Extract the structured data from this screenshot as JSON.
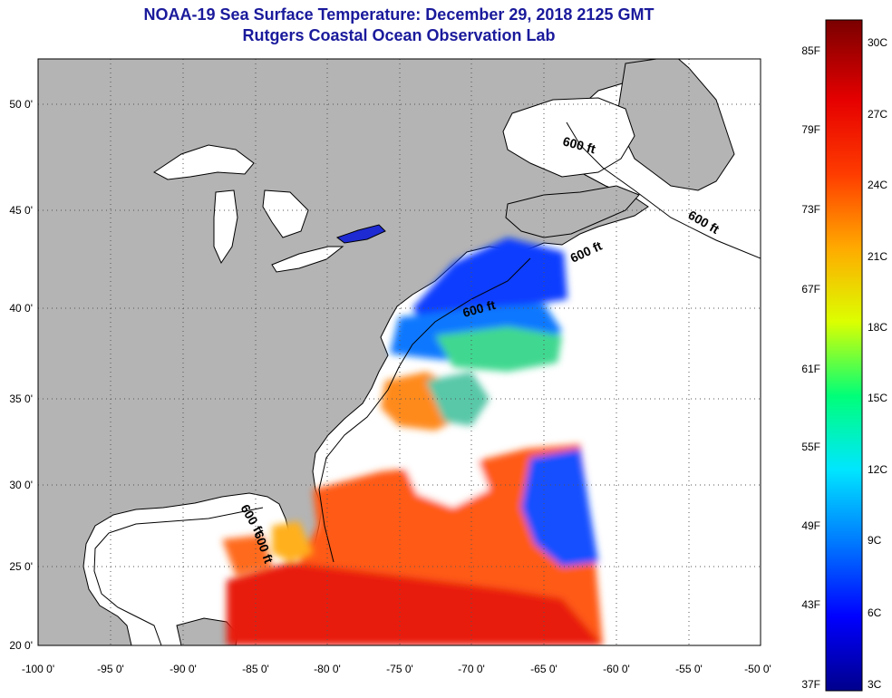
{
  "header": {
    "title": "NOAA-19 Sea Surface Temperature:  December 29, 2018 2125 GMT",
    "subtitle": "Rutgers Coastal Ocean Observation Lab"
  },
  "map": {
    "lat_range": [
      20,
      52.5
    ],
    "lon_range": [
      -100,
      -50
    ],
    "lat_ticks": [
      "50 0'",
      "45 0'",
      "40 0'",
      "35 0'",
      "30 0'",
      "25 0'",
      "20 0'"
    ],
    "lon_ticks": [
      "-100 0'",
      "-95 0'",
      "-90 0'",
      "-85 0'",
      "-80 0'",
      "-75 0'",
      "-70 0'",
      "-65 0'",
      "-60 0'",
      "-55 0'",
      "-50 0'"
    ],
    "contour_label": "600 ft",
    "land_color": "#b4b4b4",
    "ocean_color": "#ffffff"
  },
  "colorbar": {
    "fahrenheit_labels": [
      "85F",
      "79F",
      "73F",
      "67F",
      "61F",
      "55F",
      "49F",
      "43F",
      "37F"
    ],
    "celsius_labels": [
      "30C",
      "27C",
      "24C",
      "21C",
      "18C",
      "15C",
      "12C",
      "9C",
      "6C",
      "3C"
    ],
    "stops": [
      "#00008c",
      "#0000ff",
      "#0078ff",
      "#00e6ff",
      "#00ff78",
      "#dcff00",
      "#ffaa00",
      "#ff3c00",
      "#e60000",
      "#7a0000"
    ]
  }
}
